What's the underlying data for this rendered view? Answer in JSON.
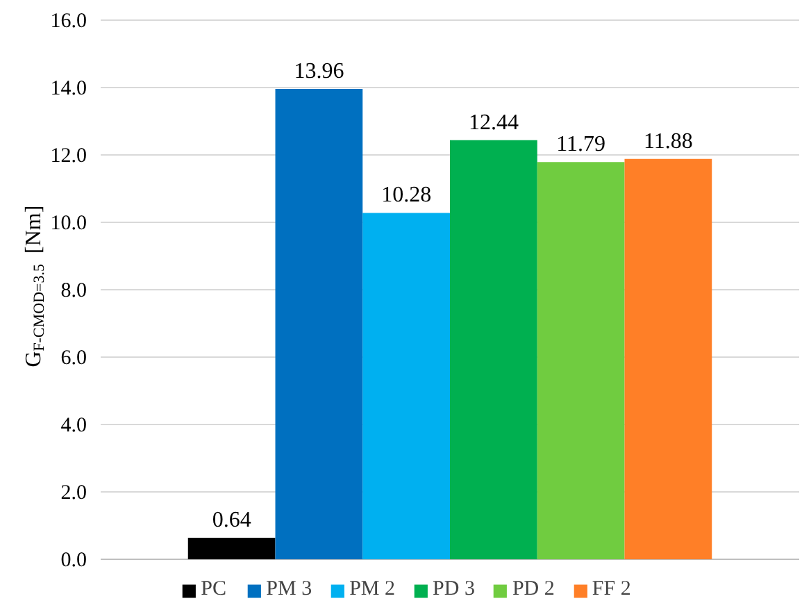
{
  "chart_data": {
    "type": "bar",
    "ylabel": "G$_{F-CMOD=3.5}$ [Nm]",
    "categories": [
      null
    ],
    "series": [
      {
        "name": "PC",
        "color": "#000000",
        "values": [
          0.64
        ]
      },
      {
        "name": "PM 3",
        "color": "#0070c0",
        "values": [
          13.96
        ]
      },
      {
        "name": "PM 2",
        "color": "#00b0f0",
        "values": [
          10.28
        ]
      },
      {
        "name": "PD 3",
        "color": "#00b050",
        "values": [
          12.44
        ]
      },
      {
        "name": "PD 2",
        "color": "#70cc40",
        "values": [
          11.79
        ]
      },
      {
        "name": "FF 2",
        "color": "#ff7f27",
        "values": [
          11.88
        ]
      }
    ],
    "ylim": [
      0,
      16
    ],
    "yticks": [
      {
        "value": 0,
        "label": "0.0"
      },
      {
        "value": 2,
        "label": "2.0"
      },
      {
        "value": 4,
        "label": "4.0"
      },
      {
        "value": 6,
        "label": "6.0"
      },
      {
        "value": 8,
        "label": "8.0"
      },
      {
        "value": 10,
        "label": "10.0"
      },
      {
        "value": 12,
        "label": "12.0"
      },
      {
        "value": 14,
        "label": "14.0"
      },
      {
        "value": 16,
        "label": "16.0"
      }
    ],
    "grid": "y",
    "legend": "bottom",
    "data_labels": true
  }
}
